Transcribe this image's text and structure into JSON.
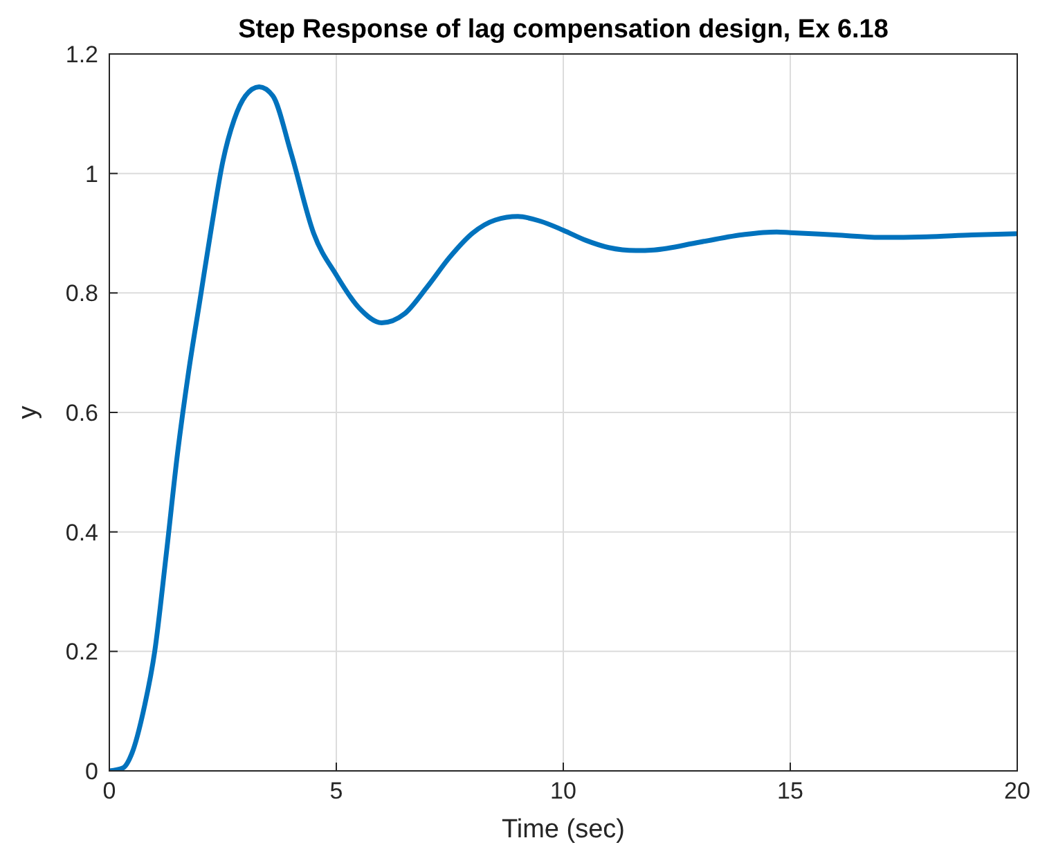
{
  "chart_data": {
    "type": "line",
    "title": "Step Response of lag compensation design, Ex 6.18",
    "xlabel": "Time (sec)",
    "ylabel": "y",
    "x": [
      0,
      0.3,
      0.5,
      0.75,
      1,
      1.25,
      1.5,
      1.75,
      2,
      2.25,
      2.5,
      2.75,
      3,
      3.3,
      3.6,
      4,
      4.5,
      5,
      5.5,
      6,
      6.5,
      7,
      7.5,
      8,
      8.5,
      9,
      9.5,
      10,
      10.5,
      11,
      11.6,
      12,
      13,
      14,
      14.7,
      15,
      16,
      17,
      18,
      19,
      20
    ],
    "series": [
      {
        "color": "#0072bd",
        "values": [
          0,
          0.005,
          0.03,
          0.1,
          0.2,
          0.36,
          0.53,
          0.67,
          0.79,
          0.91,
          1.02,
          1.09,
          1.13,
          1.145,
          1.13,
          1.035,
          0.9,
          0.83,
          0.775,
          0.75,
          0.765,
          0.81,
          0.86,
          0.9,
          0.922,
          0.928,
          0.92,
          0.905,
          0.888,
          0.876,
          0.871,
          0.872,
          0.885,
          0.898,
          0.902,
          0.901,
          0.897,
          0.893,
          0.894,
          0.897,
          0.899
        ]
      }
    ],
    "xlim": [
      0,
      20
    ],
    "ylim": [
      0,
      1.2
    ],
    "xticks": [
      0,
      5,
      10,
      15,
      20
    ],
    "yticks": [
      0,
      0.2,
      0.4,
      0.6,
      0.8,
      1,
      1.2
    ],
    "grid": true,
    "line_style": "solid",
    "marker": "none"
  }
}
